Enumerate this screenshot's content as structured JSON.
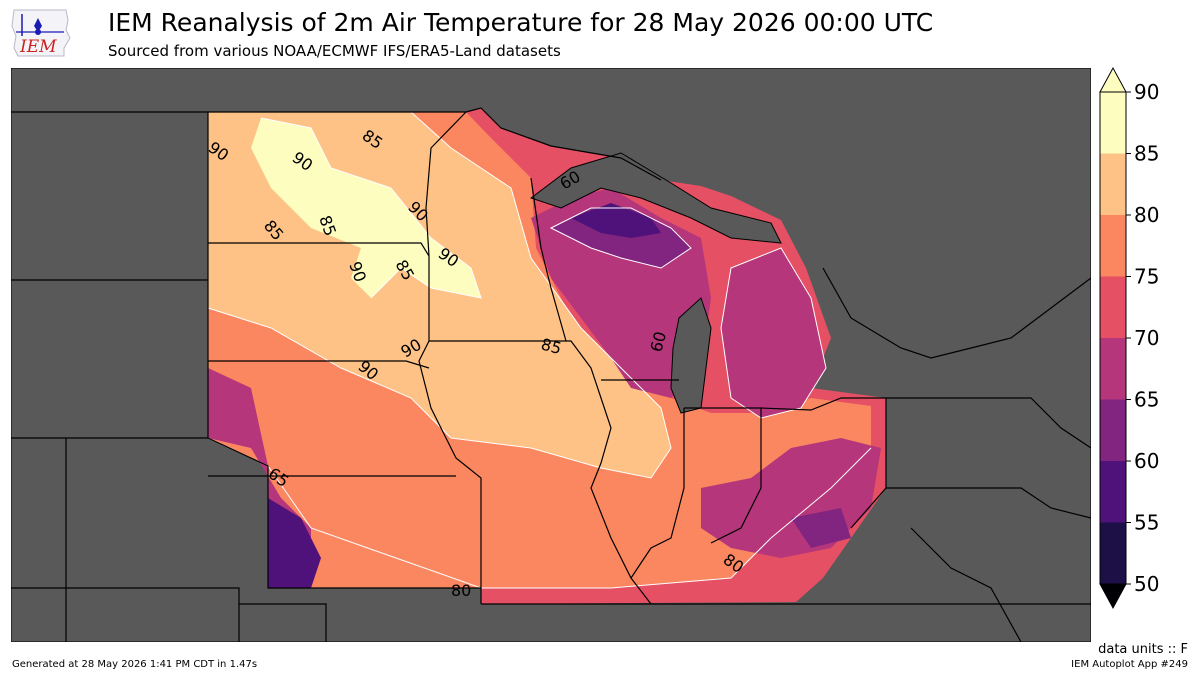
{
  "header": {
    "title": "IEM Reanalysis of 2m Air Temperature for 28 May 2026 00:00 UTC",
    "subtitle": "Sourced from various NOAA/ECMWF IFS/ERA5-Land datasets"
  },
  "logo": {
    "text": "IEM",
    "icon": "iem-iowa-logo-icon"
  },
  "map": {
    "background_color": "#595959",
    "contour_labels": [
      "90",
      "90",
      "85",
      "90",
      "85",
      "85",
      "90",
      "90",
      "85",
      "90",
      "90",
      "65",
      "80",
      "85",
      "80",
      "60",
      "60"
    ]
  },
  "colorbar": {
    "levels": [
      "50",
      "55",
      "60",
      "65",
      "70",
      "75",
      "80",
      "85",
      "90"
    ],
    "colors": [
      "#000004",
      "#1c1046",
      "#4f127b",
      "#812581",
      "#b5367a",
      "#e55064",
      "#fb8761",
      "#fec287",
      "#fcfdbf"
    ],
    "over_color": "#fcfdbf",
    "under_color": "#000004"
  },
  "footer": {
    "units": "data units :: F",
    "generated": "Generated at 28 May 2026 1:41 PM CDT in 1.47s",
    "app": "IEM Autoplot App #249"
  }
}
